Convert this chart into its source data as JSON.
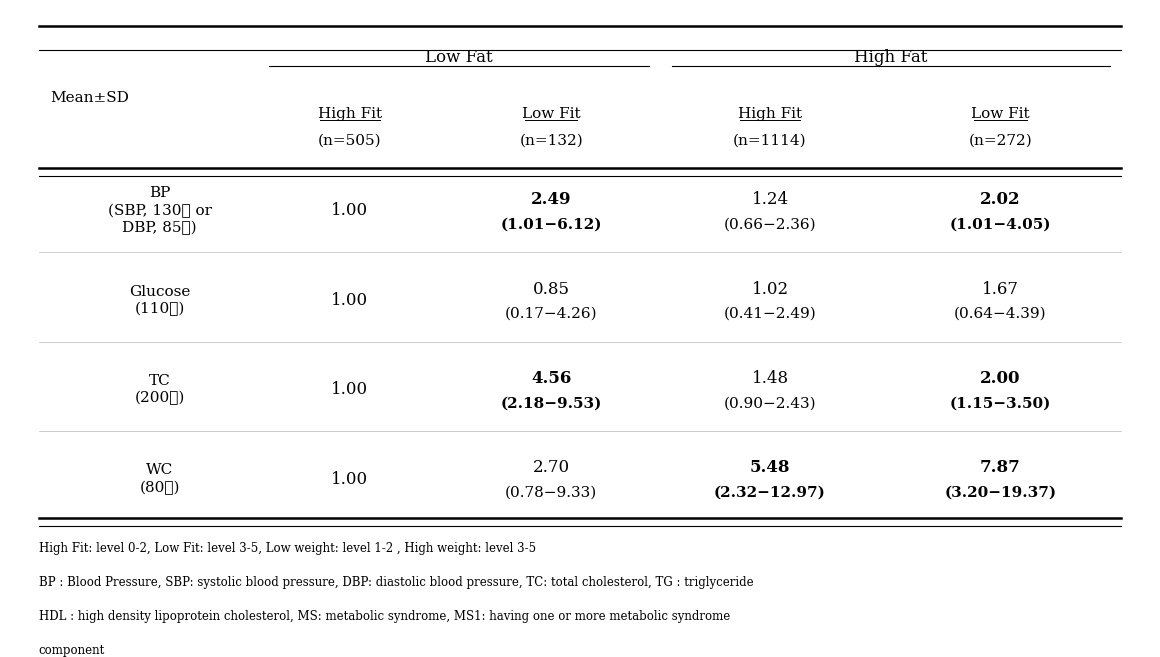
{
  "figsize": [
    11.6,
    6.57
  ],
  "dpi": 100,
  "subheaders": [
    [
      "High Fit",
      "(n=505)"
    ],
    [
      "Low Fit",
      "(n=132)"
    ],
    [
      "High Fit",
      "(n=1114)"
    ],
    [
      "Low Fit",
      "(n=272)"
    ]
  ],
  "row_label_header": "Mean±SD",
  "rows": [
    {
      "label": [
        "BP",
        "(SBP, 130≧ or",
        "DBP, 85≧)"
      ],
      "values": [
        {
          "main": "1.00",
          "sub": "",
          "bold": false
        },
        {
          "main": "2.49",
          "sub": "(1.01−6.12)",
          "bold": true
        },
        {
          "main": "1.24",
          "sub": "(0.66−2.36)",
          "bold": false
        },
        {
          "main": "2.02",
          "sub": "(1.01−4.05)",
          "bold": true
        }
      ]
    },
    {
      "label": [
        "Glucose",
        "(110≧)"
      ],
      "values": [
        {
          "main": "1.00",
          "sub": "",
          "bold": false
        },
        {
          "main": "0.85",
          "sub": "(0.17−4.26)",
          "bold": false
        },
        {
          "main": "1.02",
          "sub": "(0.41−2.49)",
          "bold": false
        },
        {
          "main": "1.67",
          "sub": "(0.64−4.39)",
          "bold": false
        }
      ]
    },
    {
      "label": [
        "TC",
        "(200≧)"
      ],
      "values": [
        {
          "main": "1.00",
          "sub": "",
          "bold": false
        },
        {
          "main": "4.56",
          "sub": "(2.18−9.53)",
          "bold": true
        },
        {
          "main": "1.48",
          "sub": "(0.90−2.43)",
          "bold": false
        },
        {
          "main": "2.00",
          "sub": "(1.15−3.50)",
          "bold": true
        }
      ]
    },
    {
      "label": [
        "WC",
        "(80≧)"
      ],
      "values": [
        {
          "main": "1.00",
          "sub": "",
          "bold": false
        },
        {
          "main": "2.70",
          "sub": "(0.78−9.33)",
          "bold": false
        },
        {
          "main": "5.48",
          "sub": "(2.32−12.97)",
          "bold": true
        },
        {
          "main": "7.87",
          "sub": "(3.20−19.37)",
          "bold": true
        }
      ]
    }
  ],
  "footnotes": [
    "High Fit: level 0-2, Low Fit: level 3-5, Low weight: level 1-2 , High weight: level 3-5",
    "BP : Blood Pressure, SBP: systolic blood pressure, DBP: diastolic blood pressure, TC: total cholesterol, TG : triglyceride",
    "HDL : high density lipoprotein cholesterol, MS: metabolic syndrome, MS1: having one or more metabolic syndrome",
    "component"
  ],
  "background_color": "#ffffff",
  "text_color": "#000000",
  "line_color": "#000000",
  "lf_group_label": "Low Fat",
  "hf_group_label": "High Fat"
}
